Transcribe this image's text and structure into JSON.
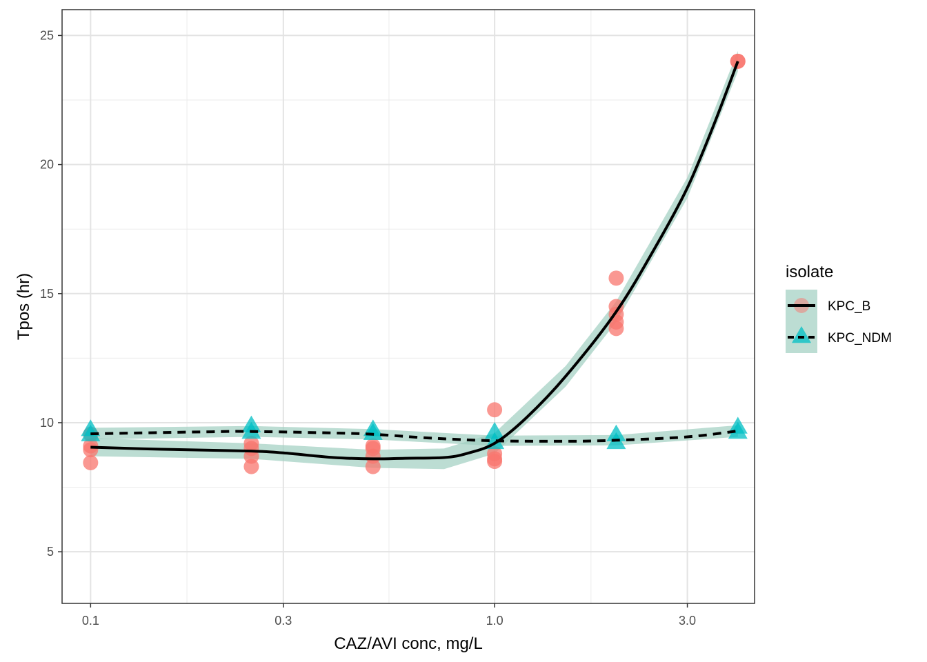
{
  "chart_data": {
    "type": "scatter",
    "title": "",
    "xlabel": "CAZ/AVI conc, mg/L",
    "ylabel": "Tpos (hr)",
    "x_scale": "log10",
    "xlim": [
      0.085,
      4.4
    ],
    "ylim": [
      3,
      26
    ],
    "x_ticks": [
      {
        "value": 0.1,
        "label": "0.1"
      },
      {
        "value": 0.3,
        "label": "0.3"
      },
      {
        "value": 1.0,
        "label": "1.0"
      },
      {
        "value": 3.0,
        "label": "3.0"
      }
    ],
    "x_minor_ticks": [
      0.1732,
      0.5477,
      1.7321
    ],
    "y_ticks": [
      {
        "value": 5,
        "label": "5"
      },
      {
        "value": 10,
        "label": "10"
      },
      {
        "value": 15,
        "label": "15"
      },
      {
        "value": 20,
        "label": "20"
      },
      {
        "value": 25,
        "label": "25"
      }
    ],
    "y_minor_ticks": [
      7.5,
      12.5,
      17.5,
      22.5
    ],
    "grid": true,
    "legend": {
      "title": "isolate",
      "position": "right"
    },
    "series": [
      {
        "name": "KPC_B",
        "color": "#F8766D",
        "marker": "circle",
        "line_style": "solid",
        "points": [
          {
            "x": 0.1,
            "y": 9.55
          },
          {
            "x": 0.1,
            "y": 9.1
          },
          {
            "x": 0.1,
            "y": 8.95
          },
          {
            "x": 0.1,
            "y": 8.45
          },
          {
            "x": 0.25,
            "y": 9.2
          },
          {
            "x": 0.25,
            "y": 9.0
          },
          {
            "x": 0.25,
            "y": 8.7
          },
          {
            "x": 0.25,
            "y": 8.3
          },
          {
            "x": 0.5,
            "y": 9.1
          },
          {
            "x": 0.5,
            "y": 9.0
          },
          {
            "x": 0.5,
            "y": 8.7
          },
          {
            "x": 0.5,
            "y": 8.3
          },
          {
            "x": 1.0,
            "y": 10.5
          },
          {
            "x": 1.0,
            "y": 8.8
          },
          {
            "x": 1.0,
            "y": 8.6
          },
          {
            "x": 1.0,
            "y": 8.5
          },
          {
            "x": 2.0,
            "y": 15.6
          },
          {
            "x": 2.0,
            "y": 14.5
          },
          {
            "x": 2.0,
            "y": 14.2
          },
          {
            "x": 2.0,
            "y": 13.9
          },
          {
            "x": 2.0,
            "y": 13.65
          },
          {
            "x": 4.0,
            "y": 24.0
          },
          {
            "x": 4.0,
            "y": 24.0
          }
        ],
        "smooth": [
          {
            "x": 0.1,
            "y": 9.05
          },
          {
            "x": 0.15,
            "y": 8.97
          },
          {
            "x": 0.25,
            "y": 8.9
          },
          {
            "x": 0.3,
            "y": 8.83
          },
          {
            "x": 0.4,
            "y": 8.65
          },
          {
            "x": 0.5,
            "y": 8.6
          },
          {
            "x": 0.6,
            "y": 8.62
          },
          {
            "x": 0.75,
            "y": 8.65
          },
          {
            "x": 0.85,
            "y": 8.8
          },
          {
            "x": 1.0,
            "y": 9.2
          },
          {
            "x": 1.2,
            "y": 10.2
          },
          {
            "x": 1.5,
            "y": 11.8
          },
          {
            "x": 2.0,
            "y": 14.3
          },
          {
            "x": 2.5,
            "y": 16.8
          },
          {
            "x": 3.0,
            "y": 19.1
          },
          {
            "x": 3.5,
            "y": 21.6
          },
          {
            "x": 4.0,
            "y": 24.0
          }
        ],
        "band": [
          {
            "x": 0.1,
            "lo": 8.7,
            "hi": 9.4
          },
          {
            "x": 0.25,
            "lo": 8.6,
            "hi": 9.2
          },
          {
            "x": 0.5,
            "lo": 8.25,
            "hi": 8.95
          },
          {
            "x": 0.75,
            "lo": 8.2,
            "hi": 9.0
          },
          {
            "x": 1.0,
            "lo": 8.8,
            "hi": 9.6
          },
          {
            "x": 1.5,
            "lo": 11.4,
            "hi": 12.2
          },
          {
            "x": 2.0,
            "lo": 13.9,
            "hi": 14.7
          },
          {
            "x": 3.0,
            "lo": 18.7,
            "hi": 19.5
          },
          {
            "x": 4.0,
            "lo": 23.6,
            "hi": 24.4
          }
        ]
      },
      {
        "name": "KPC_NDM",
        "color": "#00BFC4",
        "marker": "triangle",
        "line_style": "dashed",
        "points": [
          {
            "x": 0.1,
            "y": 9.7
          },
          {
            "x": 0.1,
            "y": 9.5
          },
          {
            "x": 0.25,
            "y": 9.85
          },
          {
            "x": 0.25,
            "y": 9.6
          },
          {
            "x": 0.5,
            "y": 9.7
          },
          {
            "x": 0.5,
            "y": 9.55
          },
          {
            "x": 1.0,
            "y": 9.6
          },
          {
            "x": 1.0,
            "y": 9.2
          },
          {
            "x": 2.0,
            "y": 9.5
          },
          {
            "x": 2.0,
            "y": 9.2
          },
          {
            "x": 4.0,
            "y": 9.8
          },
          {
            "x": 4.0,
            "y": 9.6
          }
        ],
        "smooth": [
          {
            "x": 0.1,
            "y": 9.57
          },
          {
            "x": 0.2,
            "y": 9.65
          },
          {
            "x": 0.25,
            "y": 9.66
          },
          {
            "x": 0.4,
            "y": 9.6
          },
          {
            "x": 0.5,
            "y": 9.55
          },
          {
            "x": 0.7,
            "y": 9.4
          },
          {
            "x": 1.0,
            "y": 9.3
          },
          {
            "x": 1.5,
            "y": 9.28
          },
          {
            "x": 2.0,
            "y": 9.32
          },
          {
            "x": 3.0,
            "y": 9.45
          },
          {
            "x": 4.0,
            "y": 9.68
          }
        ],
        "band": [
          {
            "x": 0.1,
            "lo": 9.35,
            "hi": 9.8
          },
          {
            "x": 0.25,
            "lo": 9.45,
            "hi": 9.87
          },
          {
            "x": 0.5,
            "lo": 9.35,
            "hi": 9.75
          },
          {
            "x": 1.0,
            "lo": 9.1,
            "hi": 9.5
          },
          {
            "x": 2.0,
            "lo": 9.12,
            "hi": 9.52
          },
          {
            "x": 4.0,
            "lo": 9.45,
            "hi": 9.9
          }
        ]
      }
    ]
  }
}
